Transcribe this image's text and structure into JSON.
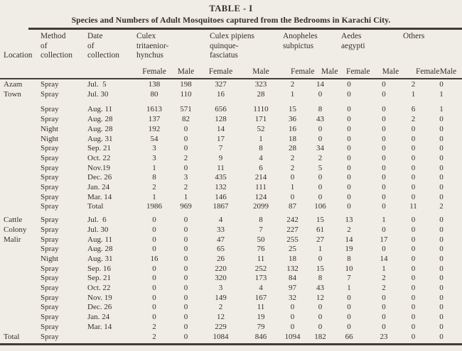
{
  "title": "TABLE - I",
  "subtitle": "Species and Numbers of Adult Mosquitoes captured from the Bedrooms in Karachi City.",
  "colors": {
    "page_background": "#f0ede6",
    "ink": "#352f28",
    "rule": "#433c33"
  },
  "header": {
    "location": "Location",
    "method": "Method\nof\ncollection",
    "date": "Date\nof\ncollection",
    "species": [
      "Culex\ntritaenior-\nhynchus",
      "Culex pipiens\nquinque-\nfasciatus",
      "Anopheles\nsubpictus",
      "Aedes\naegypti",
      "Others"
    ],
    "sex": [
      "Female",
      "Male"
    ]
  },
  "sections": [
    {
      "location": "Azam\nTown",
      "rows": [
        {
          "method": "Spray",
          "date": "Jul.  5",
          "values": [
            138,
            198,
            327,
            323,
            2,
            14,
            0,
            0,
            2,
            0
          ]
        },
        {
          "method": "Spray",
          "date": "Jul. 30",
          "values": [
            80,
            110,
            16,
            28,
            1,
            0,
            0,
            0,
            1,
            1
          ]
        },
        {
          "method": "Spray",
          "date": "Aug. 11",
          "gap_before": true,
          "values": [
            1613,
            571,
            656,
            1110,
            15,
            8,
            0,
            0,
            6,
            1
          ]
        },
        {
          "method": "Spray",
          "date": "Aug. 28",
          "values": [
            137,
            82,
            128,
            171,
            36,
            43,
            0,
            0,
            2,
            0
          ]
        },
        {
          "method": "Night",
          "date": "Aug. 28",
          "values": [
            192,
            0,
            14,
            52,
            16,
            0,
            0,
            0,
            0,
            0
          ]
        },
        {
          "method": "Night",
          "date": "Aug. 31",
          "values": [
            54,
            0,
            17,
            1,
            18,
            0,
            0,
            0,
            0,
            0
          ]
        },
        {
          "method": "Spray",
          "date": "Sep. 21",
          "values": [
            3,
            0,
            7,
            8,
            28,
            34,
            0,
            0,
            0,
            0
          ]
        },
        {
          "method": "Spray",
          "date": "Oct. 22",
          "values": [
            3,
            2,
            9,
            4,
            2,
            2,
            0,
            0,
            0,
            0
          ]
        },
        {
          "method": "Spray",
          "date": "Nov.19",
          "values": [
            1,
            0,
            11,
            6,
            2,
            5,
            0,
            0,
            0,
            0
          ]
        },
        {
          "method": "Spray",
          "date": "Dec. 26",
          "values": [
            8,
            3,
            435,
            214,
            0,
            0,
            0,
            0,
            0,
            0
          ]
        },
        {
          "method": "Spray",
          "date": "Jan. 24",
          "values": [
            2,
            2,
            132,
            111,
            1,
            0,
            0,
            0,
            0,
            0
          ]
        },
        {
          "method": "Spray",
          "date": "Mar. 14",
          "values": [
            1,
            1,
            146,
            124,
            0,
            0,
            0,
            0,
            0,
            0
          ]
        },
        {
          "method": "Spray",
          "date": "Total",
          "values": [
            1986,
            969,
            1867,
            2099,
            87,
            106,
            0,
            0,
            11,
            2
          ]
        }
      ]
    },
    {
      "location": "Cattle\nColony\nMalir",
      "gap_before": true,
      "rows": [
        {
          "method": "Spray",
          "date": "Jul.  6",
          "values": [
            0,
            0,
            4,
            8,
            242,
            15,
            13,
            1,
            0,
            0
          ]
        },
        {
          "method": "Spray",
          "date": "Jul. 30",
          "values": [
            0,
            0,
            33,
            7,
            227,
            61,
            2,
            0,
            0,
            0
          ]
        },
        {
          "method": "Spray",
          "date": "Aug. 11",
          "values": [
            0,
            0,
            47,
            50,
            255,
            27,
            14,
            17,
            0,
            0
          ]
        },
        {
          "method": "Spray",
          "date": "Aug. 28",
          "values": [
            0,
            0,
            65,
            76,
            25,
            1,
            19,
            0,
            0,
            0
          ]
        },
        {
          "method": "Night",
          "date": "Aug. 31",
          "values": [
            16,
            0,
            26,
            11,
            18,
            0,
            8,
            14,
            0,
            0
          ]
        },
        {
          "method": "Spray",
          "date": "Sep. 16",
          "values": [
            0,
            0,
            220,
            252,
            132,
            15,
            10,
            1,
            0,
            0
          ]
        },
        {
          "method": "Spray",
          "date": "Sep. 21",
          "values": [
            0,
            0,
            320,
            173,
            84,
            8,
            7,
            2,
            0,
            0
          ]
        },
        {
          "method": "Spray",
          "date": "Oct. 22",
          "values": [
            0,
            0,
            3,
            4,
            97,
            43,
            1,
            2,
            0,
            0
          ]
        },
        {
          "method": "Spray",
          "date": "Nov. 19",
          "values": [
            0,
            0,
            149,
            167,
            32,
            12,
            0,
            0,
            0,
            0
          ]
        },
        {
          "method": "Spray",
          "date": "Dec. 26",
          "values": [
            0,
            0,
            2,
            11,
            0,
            0,
            0,
            0,
            0,
            0
          ]
        },
        {
          "method": "Spray",
          "date": "Jan. 24",
          "values": [
            0,
            0,
            12,
            19,
            0,
            0,
            0,
            0,
            0,
            0
          ]
        },
        {
          "method": "Spray",
          "date": "Mar. 14",
          "values": [
            2,
            0,
            229,
            79,
            0,
            0,
            0,
            0,
            0,
            0
          ]
        }
      ]
    },
    {
      "location": "Total",
      "rows": [
        {
          "method": "Spray",
          "date": "",
          "values": [
            2,
            0,
            1084,
            846,
            1094,
            182,
            66,
            23,
            0,
            0
          ]
        }
      ]
    }
  ]
}
